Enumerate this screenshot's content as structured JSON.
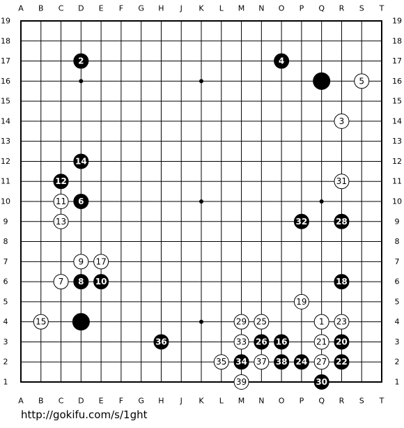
{
  "board": {
    "columns": [
      "A",
      "B",
      "C",
      "D",
      "E",
      "F",
      "G",
      "H",
      "J",
      "K",
      "L",
      "M",
      "N",
      "O",
      "P",
      "Q",
      "R",
      "S",
      "T"
    ],
    "rows": [
      19,
      18,
      17,
      16,
      15,
      14,
      13,
      12,
      11,
      10,
      9,
      8,
      7,
      6,
      5,
      4,
      3,
      2,
      1
    ],
    "stones": [
      {
        "col": "D",
        "row": 17,
        "color": "black",
        "label": "2"
      },
      {
        "col": "O",
        "row": 17,
        "color": "black",
        "label": "4"
      },
      {
        "col": "Q",
        "row": 16,
        "color": "black"
      },
      {
        "col": "S",
        "row": 16,
        "color": "white",
        "label": "5"
      },
      {
        "col": "R",
        "row": 14,
        "color": "white",
        "label": "3"
      },
      {
        "col": "D",
        "row": 12,
        "color": "black",
        "label": "14"
      },
      {
        "col": "C",
        "row": 11,
        "color": "black",
        "label": "12"
      },
      {
        "col": "R",
        "row": 11,
        "color": "white",
        "label": "31"
      },
      {
        "col": "C",
        "row": 10,
        "color": "white",
        "label": "11"
      },
      {
        "col": "D",
        "row": 10,
        "color": "black",
        "label": "6"
      },
      {
        "col": "C",
        "row": 9,
        "color": "white",
        "label": "13"
      },
      {
        "col": "P",
        "row": 9,
        "color": "black",
        "label": "32"
      },
      {
        "col": "R",
        "row": 9,
        "color": "black",
        "label": "28"
      },
      {
        "col": "D",
        "row": 7,
        "color": "white",
        "label": "9"
      },
      {
        "col": "E",
        "row": 7,
        "color": "white",
        "label": "17"
      },
      {
        "col": "C",
        "row": 6,
        "color": "white",
        "label": "7"
      },
      {
        "col": "D",
        "row": 6,
        "color": "black",
        "label": "8"
      },
      {
        "col": "E",
        "row": 6,
        "color": "black",
        "label": "10"
      },
      {
        "col": "R",
        "row": 6,
        "color": "black",
        "label": "18"
      },
      {
        "col": "P",
        "row": 5,
        "color": "white",
        "label": "19"
      },
      {
        "col": "B",
        "row": 4,
        "color": "white",
        "label": "15"
      },
      {
        "col": "D",
        "row": 4,
        "color": "black"
      },
      {
        "col": "M",
        "row": 4,
        "color": "white",
        "label": "29"
      },
      {
        "col": "N",
        "row": 4,
        "color": "white",
        "label": "25"
      },
      {
        "col": "Q",
        "row": 4,
        "color": "white",
        "label": "1"
      },
      {
        "col": "R",
        "row": 4,
        "color": "white",
        "label": "23"
      },
      {
        "col": "H",
        "row": 3,
        "color": "black",
        "label": "36"
      },
      {
        "col": "M",
        "row": 3,
        "color": "white",
        "label": "33"
      },
      {
        "col": "N",
        "row": 3,
        "color": "black",
        "label": "26"
      },
      {
        "col": "O",
        "row": 3,
        "color": "black",
        "label": "16"
      },
      {
        "col": "Q",
        "row": 3,
        "color": "white",
        "label": "21"
      },
      {
        "col": "R",
        "row": 3,
        "color": "black",
        "label": "20"
      },
      {
        "col": "L",
        "row": 2,
        "color": "white",
        "label": "35"
      },
      {
        "col": "M",
        "row": 2,
        "color": "black",
        "label": "34"
      },
      {
        "col": "N",
        "row": 2,
        "color": "white",
        "label": "37"
      },
      {
        "col": "O",
        "row": 2,
        "color": "black",
        "label": "38"
      },
      {
        "col": "P",
        "row": 2,
        "color": "black",
        "label": "24"
      },
      {
        "col": "Q",
        "row": 2,
        "color": "white",
        "label": "27"
      },
      {
        "col": "R",
        "row": 2,
        "color": "black",
        "label": "22"
      },
      {
        "col": "M",
        "row": 1,
        "color": "white",
        "label": "39"
      },
      {
        "col": "Q",
        "row": 1,
        "color": "black",
        "label": "30"
      }
    ]
  },
  "footer": {
    "url": "http://gokifu.com/s/1ght"
  }
}
